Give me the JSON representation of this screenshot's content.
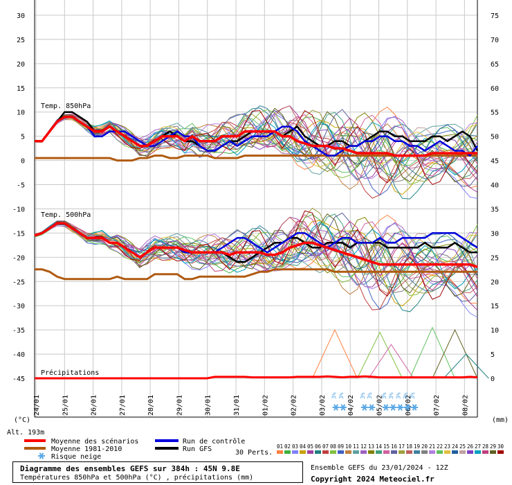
{
  "chart_data": {
    "type": "line",
    "title": "Diagramme des ensembles GEFS sur 384h : 45N 9.8E",
    "subtitle": "Températures 850hPa et 500hPa (°C) , précipitations (mm)",
    "run_info": "Ensemble GEFS du 23/01/2024 - 12Z",
    "copyright": "Copyright 2024 Meteociel.fr",
    "altitude": "Alt. 193m",
    "left_unit": "(°C)",
    "right_unit": "(mm)",
    "panel_labels": {
      "t850": "Temp. 850hPa",
      "t500": "Temp. 500hPa",
      "precip": "Précipitations"
    },
    "left_axis": {
      "min": -45,
      "max": 30,
      "ticks": [
        30,
        25,
        20,
        15,
        10,
        5,
        0,
        -5,
        -10,
        -15,
        -20,
        -25,
        -30,
        -35,
        -40,
        -45
      ]
    },
    "right_axis": {
      "min": 0,
      "max": 75,
      "ticks": [
        75,
        70,
        65,
        60,
        55,
        50,
        45,
        40,
        35,
        30,
        25,
        20,
        15,
        10,
        5,
        0
      ]
    },
    "x_dates": [
      "24/01",
      "25/01",
      "26/01",
      "27/01",
      "28/01",
      "29/01",
      "30/01",
      "31/01",
      "01/02",
      "02/02",
      "03/02",
      "04/02",
      "05/02",
      "06/02",
      "07/02",
      "08/02"
    ],
    "x_step_hours": 6,
    "legend": {
      "mean": "Moyenne des scénarios",
      "clim": "Moyenne 1981-2010",
      "snow": "Risque neige",
      "control": "Run de contrôle",
      "gfs": "Run GFS",
      "perts_label": "30 Perts.",
      "pert_numbers": [
        "01",
        "02",
        "03",
        "04",
        "05",
        "06",
        "07",
        "08",
        "09",
        "10",
        "11",
        "12",
        "13",
        "14",
        "15",
        "16",
        "17",
        "18",
        "19",
        "20",
        "21",
        "22",
        "23",
        "24",
        "25",
        "26",
        "27",
        "28",
        "29",
        "30"
      ]
    },
    "colors": {
      "mean": "#ff0000",
      "clim": "#b05a10",
      "control": "#0000dd",
      "gfs": "#000000",
      "snow": "#5aa8e6",
      "pert_palette": [
        "#ff8040",
        "#40b040",
        "#8080ff",
        "#c8a000",
        "#a040a0",
        "#208080",
        "#c04040",
        "#80c040",
        "#4060c0",
        "#c08040",
        "#60a0a0",
        "#a060c0",
        "#808000",
        "#40a080",
        "#d060a0",
        "#6060a0",
        "#a0a040",
        "#c06060",
        "#4080a0",
        "#808080",
        "#b080e0",
        "#60c060",
        "#e0c040",
        "#2060a0",
        "#c0a0a0",
        "#8040c0",
        "#00a0c0",
        "#c04080",
        "#606020",
        "#a00000"
      ]
    },
    "snow_markers": [
      {
        "date_index": 10.5,
        "label": "3%"
      },
      {
        "date_index": 10.75,
        "label": "3%"
      },
      {
        "date_index": 11.5,
        "label": "3%"
      },
      {
        "date_index": 11.75,
        "label": "3%"
      },
      {
        "date_index": 12.25,
        "label": "3%"
      },
      {
        "date_index": 12.5,
        "label": "3%"
      },
      {
        "date_index": 12.75,
        "label": "3%"
      },
      {
        "date_index": 13.0,
        "label": "3%"
      },
      {
        "date_index": 13.25,
        "label": "3%"
      }
    ],
    "series": {
      "t850": {
        "mean": [
          4,
          4,
          6,
          8,
          9,
          9,
          8,
          7,
          6,
          6,
          7,
          6,
          5,
          4,
          3,
          3,
          4,
          5,
          5,
          5,
          4,
          5,
          4,
          4,
          4,
          5,
          5,
          5,
          6,
          6,
          6,
          6,
          6,
          5,
          5,
          4,
          3.5,
          3,
          3,
          3,
          2.5,
          2.5,
          2,
          1.5,
          1.5,
          1.5,
          1.5,
          1.5,
          1,
          1,
          1,
          1,
          1,
          1.5,
          1.5,
          1.5,
          1.5,
          1.5,
          1.5,
          1.5
        ],
        "control": [
          4,
          4,
          6,
          8,
          9,
          9,
          8,
          7,
          5,
          5,
          6,
          6,
          6,
          5,
          4,
          3,
          3,
          4,
          5,
          6,
          5,
          5,
          3,
          2,
          2,
          3,
          4,
          3,
          4,
          5,
          5,
          5,
          6,
          7,
          7,
          6,
          4,
          3,
          2,
          1,
          1,
          2,
          3,
          3,
          4,
          4,
          5,
          5,
          4,
          4,
          3,
          3,
          2,
          3,
          4,
          3,
          2,
          2,
          1,
          3
        ],
        "gfs": [
          4,
          4,
          6,
          8,
          10,
          10,
          9,
          8,
          6,
          6,
          7,
          6,
          5,
          4,
          3,
          3,
          4,
          5,
          6,
          5,
          4,
          4,
          3,
          2,
          2,
          3,
          4,
          4,
          5,
          6,
          6,
          6,
          6,
          5,
          6,
          7,
          5,
          4,
          3,
          3,
          4,
          4,
          3,
          3,
          4,
          5,
          6,
          6,
          5,
          5,
          4,
          4,
          4,
          5,
          5,
          4,
          5,
          6,
          5,
          2
        ],
        "clim": [
          0.5,
          0.5,
          0.5,
          0.5,
          0.5,
          0.5,
          0.5,
          0.5,
          0.5,
          0.5,
          0.5,
          0,
          0,
          0,
          0.5,
          0.5,
          1,
          1,
          0.5,
          0.5,
          1,
          1,
          1,
          1,
          0.5,
          0.5,
          0.5,
          0.5,
          1,
          1,
          1,
          1,
          1,
          1,
          1,
          1,
          1,
          1,
          1,
          1,
          1,
          1,
          1,
          1,
          1,
          1,
          1,
          1,
          1,
          1,
          1,
          1,
          1,
          1,
          1,
          1,
          1,
          1,
          1,
          1
        ],
        "spread": [
          0.2,
          0.2,
          0.3,
          0.4,
          0.5,
          0.6,
          0.7,
          0.9,
          1.1,
          1.3,
          1.5,
          1.7,
          1.9,
          2.0,
          2.1,
          2.2,
          2.3,
          2.4,
          2.5,
          2.6,
          2.7,
          2.8,
          3.0,
          3.2,
          3.4,
          3.6,
          3.8,
          4.0,
          4.2,
          4.4,
          4.6,
          4.8,
          5.0,
          5.3,
          5.6,
          5.9,
          6.2,
          6.5,
          6.8,
          7.0,
          7.2,
          7.4,
          7.6,
          7.8,
          8.0,
          8.2,
          8.4,
          8.6,
          8.8,
          9.0,
          9.0,
          9.0,
          9.0,
          9.0,
          9.0,
          9.0,
          9.0,
          9.0,
          9.0,
          9.0
        ]
      },
      "t500": {
        "mean": [
          -15.5,
          -15,
          -14,
          -13,
          -13,
          -14,
          -15,
          -16,
          -16,
          -16,
          -17,
          -17,
          -18,
          -19,
          -20,
          -19,
          -18,
          -18,
          -18,
          -18,
          -18.5,
          -19,
          -19,
          -19,
          -19,
          -19,
          -19.5,
          -19,
          -19,
          -19,
          -19,
          -19.5,
          -19.5,
          -19,
          -18,
          -17.5,
          -17,
          -17,
          -17.5,
          -18,
          -18.5,
          -19,
          -19.5,
          -20,
          -20.5,
          -21,
          -21.5,
          -21.5,
          -21.5,
          -21.5,
          -21.5,
          -21.5,
          -21.5,
          -21.5,
          -21.5,
          -21.5,
          -21.5,
          -21.5,
          -21.5,
          -22
        ],
        "control": [
          -15.5,
          -15,
          -14,
          -13,
          -13,
          -14,
          -15,
          -16,
          -16,
          -16,
          -17,
          -17,
          -18,
          -19,
          -20,
          -19,
          -18,
          -18,
          -18,
          -18,
          -19,
          -19,
          -19,
          -19,
          -19,
          -18,
          -17,
          -16,
          -16,
          -17,
          -18,
          -19,
          -18,
          -17,
          -16,
          -15,
          -15,
          -16,
          -17,
          -18,
          -17,
          -16,
          -16,
          -17,
          -17,
          -17,
          -16,
          -17,
          -17,
          -16,
          -16,
          -16,
          -16,
          -15,
          -15,
          -15,
          -15,
          -16,
          -17,
          -18
        ],
        "gfs": [
          -15.5,
          -15,
          -14,
          -13,
          -13,
          -14,
          -15,
          -16,
          -16,
          -16,
          -17,
          -17,
          -18,
          -19,
          -20,
          -19,
          -18,
          -18,
          -18,
          -18,
          -19,
          -19,
          -19,
          -19,
          -19,
          -19,
          -20,
          -21,
          -21,
          -20,
          -19,
          -18,
          -17,
          -17,
          -16,
          -16,
          -17,
          -18,
          -18,
          -17,
          -17,
          -17,
          -18,
          -17,
          -17,
          -17,
          -17,
          -18,
          -18,
          -18,
          -18,
          -18,
          -17,
          -18,
          -18,
          -18,
          -17,
          -18,
          -19,
          -19
        ],
        "clim": [
          -22.5,
          -22.5,
          -23,
          -24,
          -24.5,
          -24.5,
          -24.5,
          -24.5,
          -24.5,
          -24.5,
          -24.5,
          -24,
          -24.5,
          -24.5,
          -24.5,
          -24.5,
          -23.5,
          -23.5,
          -23.5,
          -23.5,
          -24.5,
          -24.5,
          -24,
          -24,
          -24,
          -24,
          -24,
          -24,
          -24,
          -23.5,
          -23,
          -23,
          -22.5,
          -22.5,
          -22.5,
          -22.5,
          -22.5,
          -22.5,
          -22.5,
          -22.5,
          -23,
          -23,
          -23,
          -23,
          -23,
          -23,
          -23,
          -23,
          -23,
          -23,
          -23,
          -23,
          -23,
          -23,
          -23,
          -23,
          -23,
          -23,
          -23,
          -23
        ],
        "spread": [
          0.3,
          0.3,
          0.4,
          0.5,
          0.6,
          0.7,
          0.8,
          1.0,
          1.2,
          1.4,
          1.6,
          1.8,
          2.0,
          2.2,
          2.3,
          2.4,
          2.5,
          2.6,
          2.7,
          2.8,
          2.9,
          3.0,
          3.2,
          3.4,
          3.6,
          3.8,
          4.0,
          4.2,
          4.4,
          4.6,
          4.8,
          5.0,
          5.2,
          5.4,
          5.6,
          5.8,
          6.0,
          6.3,
          6.6,
          6.9,
          7.2,
          7.5,
          7.8,
          8.1,
          8.4,
          8.7,
          9.0,
          9.2,
          9.4,
          9.6,
          9.8,
          10,
          10,
          10,
          10,
          10,
          10,
          10,
          10,
          10
        ]
      },
      "precip": {
        "mean": [
          0,
          0,
          0,
          0,
          0,
          0,
          0,
          0,
          0,
          0,
          0,
          0,
          0,
          0,
          0,
          0,
          0,
          0,
          0,
          0,
          0,
          0,
          0,
          0,
          0.3,
          0.3,
          0.3,
          0.3,
          0.3,
          0.2,
          0.2,
          0.2,
          0.2,
          0.2,
          0.2,
          0.3,
          0.3,
          0.3,
          0.3,
          0.4,
          0.3,
          0.2,
          0.3,
          0.3,
          0.4,
          0.3,
          0.2,
          0.2,
          0.2,
          0.2,
          0.2,
          0.2,
          0.2,
          0.2,
          0.2,
          0.2,
          0.2,
          0.2,
          0.3,
          0.2
        ],
        "spikes": [
          {
            "x": 40,
            "v": 10
          },
          {
            "x": 46,
            "v": 9.5
          },
          {
            "x": 47.5,
            "v": 7
          },
          {
            "x": 53,
            "v": 10.5
          },
          {
            "x": 56,
            "v": 10
          },
          {
            "x": 57.5,
            "v": 5
          }
        ]
      }
    }
  }
}
